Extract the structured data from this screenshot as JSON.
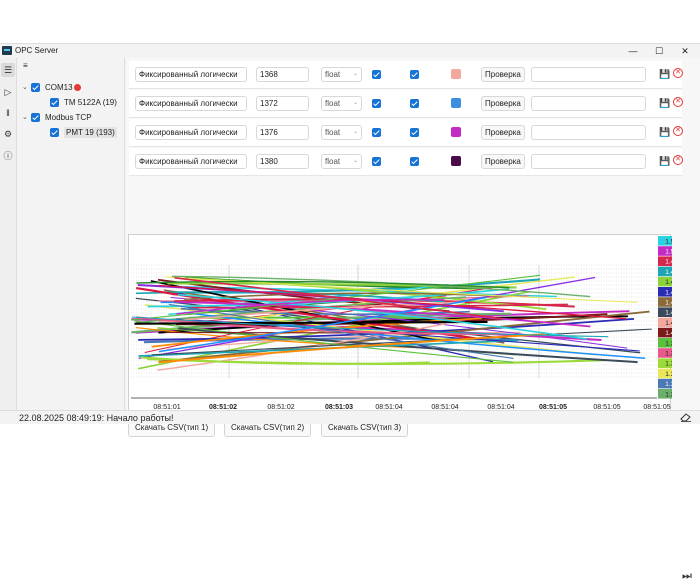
{
  "window": {
    "title": "OPC Server",
    "minimize": "—",
    "maximize": "☐",
    "close": "✕"
  },
  "tree": {
    "menu_glyph": "≡",
    "nodes": [
      {
        "label": "COM13",
        "level": 0,
        "status_color": "#e53935"
      },
      {
        "label": "TM 5122A (19)",
        "level": 1
      },
      {
        "label": "Modbus TCP",
        "level": 0
      },
      {
        "label": "PMT 19 (193)",
        "level": 1
      }
    ]
  },
  "rows": [
    {
      "name": "Фиксированный логически",
      "address": "1368",
      "type": "float",
      "color": "#f4a79d",
      "check_label": "Проверка",
      "value": ""
    },
    {
      "name": "Фиксированный логически",
      "address": "1372",
      "type": "float",
      "color": "#3d8ee0",
      "check_label": "Проверка",
      "value": ""
    },
    {
      "name": "Фиксированный логически",
      "address": "1376",
      "type": "float",
      "color": "#c42bc4",
      "check_label": "Проверка",
      "value": ""
    },
    {
      "name": "Фиксированный логически",
      "address": "1380",
      "type": "float",
      "color": "#4a0b4a",
      "check_label": "Проверка",
      "value": ""
    }
  ],
  "chart_data": {
    "type": "line",
    "x_ticks": [
      "08:51:01",
      "08:51:02",
      "08:51:02",
      "08:51:03",
      "08:51:04",
      "08:51:04",
      "08:51:04",
      "08:51:05",
      "08:51:05",
      "08:51:05"
    ],
    "x_ticks_bold": [
      false,
      true,
      false,
      true,
      false,
      false,
      false,
      true,
      false,
      false
    ],
    "legend": [
      {
        "label": "1.51751",
        "color": "#2bd3e0"
      },
      {
        "label": "1.51385",
        "color": "#c42bc4"
      },
      {
        "label": "1.49165",
        "color": "#d8274d"
      },
      {
        "label": "1.49060",
        "color": "#1ea6b5"
      },
      {
        "label": "1.46439",
        "color": "#8bd13c"
      },
      {
        "label": "1.46030",
        "color": "#2a2ab5"
      },
      {
        "label": "1.45762",
        "color": "#8a6a3a"
      },
      {
        "label": "1.44489",
        "color": "#3a4a5a"
      },
      {
        "label": "1.43282",
        "color": "#f4a79d"
      },
      {
        "label": "1.41915",
        "color": "#7a1a1a"
      },
      {
        "label": "1.38797",
        "color": "#5ac13c"
      },
      {
        "label": "1.38028",
        "color": "#e85a8a"
      },
      {
        "label": "1.37197",
        "color": "#9adb3a"
      },
      {
        "label": "1.37122",
        "color": "#e8e85a"
      },
      {
        "label": "1.36716",
        "color": "#4a7ab5"
      },
      {
        "label": "1.36235",
        "color": "#6ab06a"
      }
    ]
  },
  "csv_buttons": [
    "Скачать CSV(тип 1)",
    "Скачать CSV(тип 2)",
    "Скачать CSV(тип 3)"
  ],
  "status": {
    "text": "22.08.2025 08:49:19: Начало работы!"
  }
}
